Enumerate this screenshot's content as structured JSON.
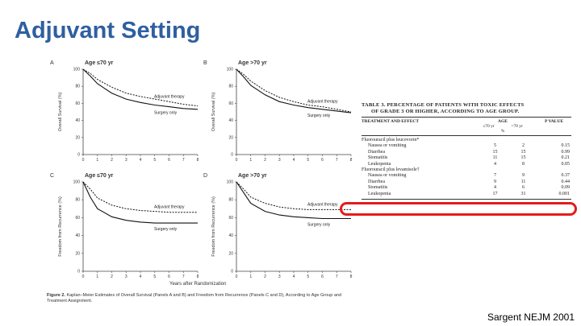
{
  "slide": {
    "title": "Adjuvant Setting",
    "citation": "Sargent NEJM 2001"
  },
  "figure": {
    "caption_lead": "Figure 2.",
    "caption": "Kaplan–Meier Estimates of Overall Survival (Panels A and B) and Freedom from Recurrence (Panels C and D), According to Age Group and Treatment Assignment.",
    "x_label": "Years after Randomization",
    "x_ticks": [
      "0",
      "1",
      "2",
      "3",
      "4",
      "5",
      "6",
      "7",
      "8"
    ],
    "y_ticks": [
      "100",
      "80",
      "60",
      "40",
      "20",
      "0"
    ]
  },
  "chart_data": [
    {
      "type": "line",
      "panel": "A",
      "title": "Age ≤70 yr",
      "ylabel": "Overall Survival (%)",
      "ylim": [
        0,
        100
      ],
      "xlim": [
        0,
        8
      ],
      "series": [
        {
          "name": "Adjuvant therapy",
          "style": "dashed",
          "x": [
            0,
            0.5,
            1,
            2,
            3,
            4,
            5,
            6,
            7,
            8
          ],
          "y": [
            100,
            95,
            88,
            79,
            72,
            68,
            65,
            62,
            59,
            57
          ]
        },
        {
          "name": "Surgery only",
          "style": "solid",
          "x": [
            0,
            0.5,
            1,
            2,
            3,
            4,
            5,
            6,
            7,
            8
          ],
          "y": [
            100,
            92,
            83,
            72,
            65,
            61,
            58,
            56,
            54,
            53
          ]
        }
      ]
    },
    {
      "type": "line",
      "panel": "B",
      "title": "Age >70 yr",
      "ylabel": "Overall Survival (%)",
      "ylim": [
        0,
        100
      ],
      "xlim": [
        0,
        8
      ],
      "series": [
        {
          "name": "Adjuvant therapy",
          "style": "dashed",
          "x": [
            0,
            0.5,
            1,
            2,
            3,
            4,
            5,
            6,
            7,
            8
          ],
          "y": [
            100,
            94,
            86,
            75,
            67,
            62,
            58,
            56,
            53,
            50
          ]
        },
        {
          "name": "Surgery only",
          "style": "solid",
          "x": [
            0,
            0.5,
            1,
            2,
            3,
            4,
            5,
            6,
            7,
            8
          ],
          "y": [
            100,
            91,
            81,
            70,
            62,
            58,
            55,
            53,
            51,
            49
          ]
        }
      ]
    },
    {
      "type": "line",
      "panel": "C",
      "title": "Age ≤70 yr",
      "ylabel": "Freedom from Recurrence (%)",
      "ylim": [
        0,
        100
      ],
      "xlim": [
        0,
        8
      ],
      "series": [
        {
          "name": "Adjuvant therapy",
          "style": "dashed",
          "x": [
            0,
            0.5,
            1,
            2,
            3,
            4,
            5,
            6,
            7,
            8
          ],
          "y": [
            100,
            92,
            82,
            74,
            70,
            68,
            67,
            66,
            66,
            66
          ]
        },
        {
          "name": "Surgery only",
          "style": "solid",
          "x": [
            0,
            0.5,
            1,
            2,
            3,
            4,
            5,
            6,
            7,
            8
          ],
          "y": [
            100,
            83,
            70,
            61,
            57,
            55,
            54,
            54,
            54,
            54
          ]
        }
      ]
    },
    {
      "type": "line",
      "panel": "D",
      "title": "Age >70 yr",
      "ylabel": "Freedom from Recurrence (%)",
      "ylim": [
        0,
        100
      ],
      "xlim": [
        0,
        8
      ],
      "series": [
        {
          "name": "Adjuvant therapy",
          "style": "dashed",
          "x": [
            0,
            0.5,
            1,
            2,
            3,
            4,
            5,
            6,
            7,
            8
          ],
          "y": [
            100,
            92,
            83,
            76,
            72,
            70,
            69,
            69,
            69,
            69
          ]
        },
        {
          "name": "Surgery only",
          "style": "solid",
          "x": [
            0,
            0.5,
            1,
            2,
            3,
            4,
            5,
            6,
            7,
            8
          ],
          "y": [
            100,
            88,
            76,
            67,
            63,
            61,
            60,
            59,
            59,
            59
          ]
        }
      ]
    }
  ],
  "table": {
    "title_line1": "TABLE 3. PERCENTAGE OF PATIENTS WITH TOXIC EFFECTS",
    "title_line2": "OF GRADE 3 OR HIGHER, ACCORDING TO AGE GROUP.",
    "col_treatment": "TREATMENT AND EFFECT",
    "col_age": "AGE",
    "col_p": "P VALUE",
    "sub_young": "≤70 yr",
    "sub_old": ">70 yr",
    "sub_pct": "%",
    "rows": [
      {
        "label": "Fluorouracil plus leucovorin*",
        "young": "",
        "old": "",
        "p": "",
        "group": true
      },
      {
        "label": "Nausea or vomiting",
        "young": "5",
        "old": "2",
        "p": "0.15",
        "group": false
      },
      {
        "label": "Diarrhea",
        "young": "15",
        "old": "15",
        "p": "0.99",
        "group": false
      },
      {
        "label": "Stomatitis",
        "young": "11",
        "old": "15",
        "p": "0.21",
        "group": false
      },
      {
        "label": "Leukopenia",
        "young": "4",
        "old": "8",
        "p": "0.05",
        "group": false
      },
      {
        "label": "Fluorouracil plus levamisole†",
        "young": "",
        "old": "",
        "p": "",
        "group": true
      },
      {
        "label": "Nausea or vomiting",
        "young": "7",
        "old": "9",
        "p": "0.37",
        "group": false
      },
      {
        "label": "Diarrhea",
        "young": "9",
        "old": "11",
        "p": "0.44",
        "group": false
      },
      {
        "label": "Stomatitis",
        "young": "4",
        "old": "6",
        "p": "0.09",
        "group": false
      },
      {
        "label": "Leukopenia",
        "young": "17",
        "old": "31",
        "p": "0.001",
        "group": false
      }
    ]
  }
}
